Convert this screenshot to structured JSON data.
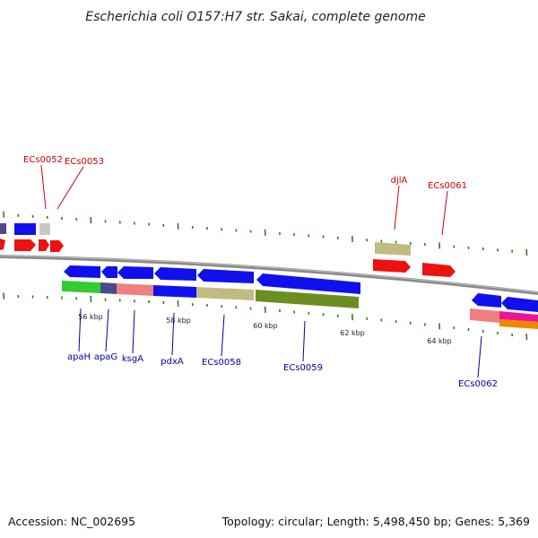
{
  "title": "Escherichia coli O157:H7 str. Sakai, complete genome",
  "accession": "Accession: NC_002695",
  "topology": "Topology: circular; Length: 5,498,450 bp; Genes: 5,369",
  "colors": {
    "backbone": "#8a8a8a",
    "tick": "#2e7d1e",
    "label_red": "#cc0000",
    "label_blue": "#0000aa",
    "blue": "#1010ee",
    "red": "#ee1111",
    "green": "#33cc33",
    "slate": "#4a4a8c",
    "salmon": "#ee8080",
    "khaki": "#c0bb80",
    "olive": "#6b8e23",
    "grey": "#c8c8c8",
    "magenta": "#ee1199",
    "orange": "#ee8800"
  },
  "scale_labels": [
    "56 kbp",
    "58 kbp",
    "60 kbp",
    "62 kbp",
    "64 kbp"
  ],
  "labels_top": [
    "ECs0052",
    "ECs0053",
    "djlA",
    "ECs0061"
  ],
  "labels_bottom": [
    "apaH",
    "apaG",
    "ksgA",
    "pdxA",
    "ECs0058",
    "ECs0059",
    "ECs0062"
  ]
}
